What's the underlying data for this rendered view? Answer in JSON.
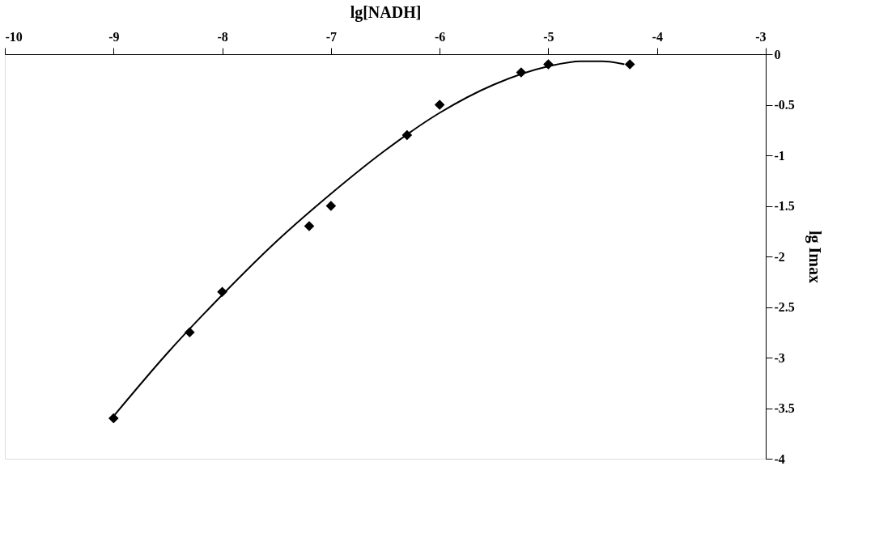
{
  "chart_data": {
    "type": "scatter",
    "xlabel": "lg[NADH]",
    "ylabel": "lg Imax",
    "xlim": [
      -10,
      -3
    ],
    "xticks": [
      -10,
      -9,
      -8,
      -7,
      -6,
      -5,
      -4,
      -3
    ],
    "ylim": [
      -4,
      0
    ],
    "yticks": [
      0,
      -0.5,
      -1,
      -1.5,
      -2,
      -2.5,
      -3,
      -3.5,
      -4
    ],
    "grid": false,
    "marker": "diamond",
    "series": [
      {
        "type": "scatter",
        "color": "#000000",
        "x": [
          -9,
          -8.3,
          -8,
          -7.2,
          -7,
          -6.3,
          -6,
          -5.25,
          -5,
          -4.25
        ],
        "values": [
          -3.6,
          -2.75,
          -2.35,
          -1.7,
          -1.5,
          -0.8,
          -0.5,
          -0.18,
          -0.1,
          -0.1
        ]
      },
      {
        "type": "line",
        "color": "#000000",
        "line_style": "solid",
        "marker": "none",
        "x": [
          -9,
          -8.5,
          -8,
          -7.5,
          -7,
          -6.5,
          -6,
          -5.5,
          -5,
          -4.7,
          -4.5,
          -4.3
        ],
        "values": [
          -3.58,
          -2.95,
          -2.38,
          -1.85,
          -1.38,
          -0.95,
          -0.58,
          -0.3,
          -0.12,
          -0.07,
          -0.07,
          -0.1
        ]
      }
    ]
  }
}
